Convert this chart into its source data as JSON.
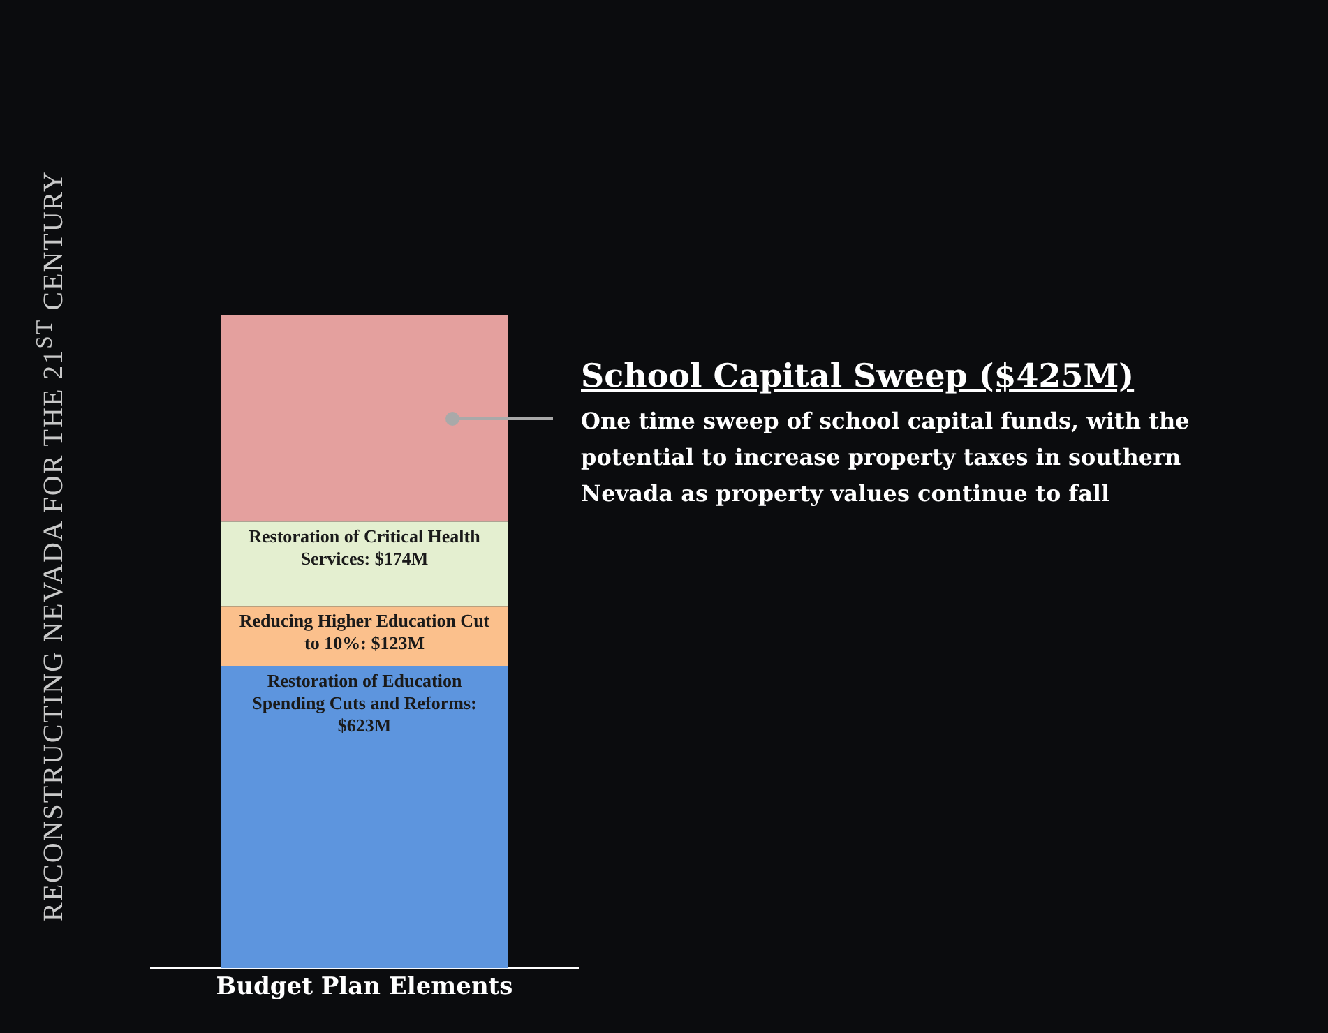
{
  "chart_data": {
    "type": "bar",
    "stacked": true,
    "grid": false,
    "legend": false,
    "categories": [
      null
    ],
    "xlabel": "Budget Plan Elements",
    "series": [
      {
        "name": "Restoration of Education Spending Cuts and Reforms:",
        "color": "#5d95de",
        "values": [
          623
        ],
        "value_labels": [
          "$623M"
        ]
      },
      {
        "name": "Reducing Higher Education Cut to 10%:",
        "color": "#fbc08c",
        "values": [
          123
        ],
        "value_labels": [
          "$123M"
        ]
      },
      {
        "name": "Restoration of Critical Health Services:",
        "color": "#e4efd0",
        "values": [
          174
        ],
        "value_labels": [
          "$174M"
        ]
      },
      {
        "name": "School Capital Sweep",
        "color": "#e4a09e",
        "values": [
          425
        ],
        "value_labels": [
          "($425M)"
        ]
      }
    ],
    "annotations": [
      "One time sweep of school capital funds, with the potential to increase property taxes in southern Nevada as property values continue to fall",
      "RECONSTRUCTING NEVADA  FOR THE 21$^{ST}$ CENTURY"
    ]
  }
}
